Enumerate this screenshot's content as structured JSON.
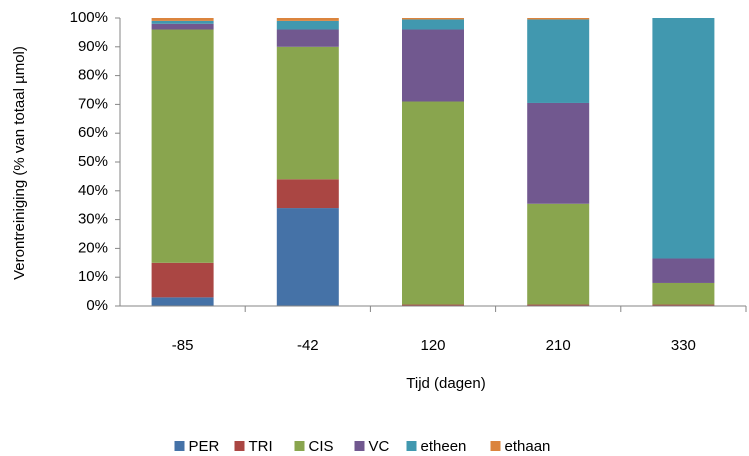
{
  "chart_data": {
    "type": "stacked_bar",
    "x_label": "Tijd (dagen)",
    "y_label": "Verontreiniging (% van totaal µmol)",
    "categories": [
      "-85",
      "-42",
      "120",
      "210",
      "330"
    ],
    "series": [
      {
        "name": "PER",
        "color": "#4572a7",
        "values": [
          3,
          34,
          0,
          0,
          0
        ]
      },
      {
        "name": "TRI",
        "color": "#aa4643",
        "values": [
          12,
          10,
          0.5,
          0.5,
          0.5
        ]
      },
      {
        "name": "CIS",
        "color": "#89a54e",
        "values": [
          81,
          46,
          70.5,
          35,
          7.5
        ]
      },
      {
        "name": "VC",
        "color": "#71588f",
        "values": [
          2,
          6,
          25,
          35,
          8.5
        ]
      },
      {
        "name": "etheen",
        "color": "#4198af",
        "values": [
          1,
          3,
          3.5,
          29,
          83.5
        ]
      },
      {
        "name": "ethaan",
        "color": "#db843d",
        "values": [
          1,
          1,
          0.5,
          0.5,
          0
        ]
      }
    ],
    "ylim": [
      0,
      100
    ],
    "yticks": [
      {
        "value": 0,
        "label": "0%"
      },
      {
        "value": 10,
        "label": "10%"
      },
      {
        "value": 20,
        "label": "20%"
      },
      {
        "value": 30,
        "label": "30%"
      },
      {
        "value": 40,
        "label": "40%"
      },
      {
        "value": 50,
        "label": "50%"
      },
      {
        "value": 60,
        "label": "60%"
      },
      {
        "value": 70,
        "label": "70%"
      },
      {
        "value": 80,
        "label": "80%"
      },
      {
        "value": 90,
        "label": "90%"
      },
      {
        "value": 100,
        "label": "100%"
      }
    ],
    "grid": false,
    "legend": "bottom"
  }
}
